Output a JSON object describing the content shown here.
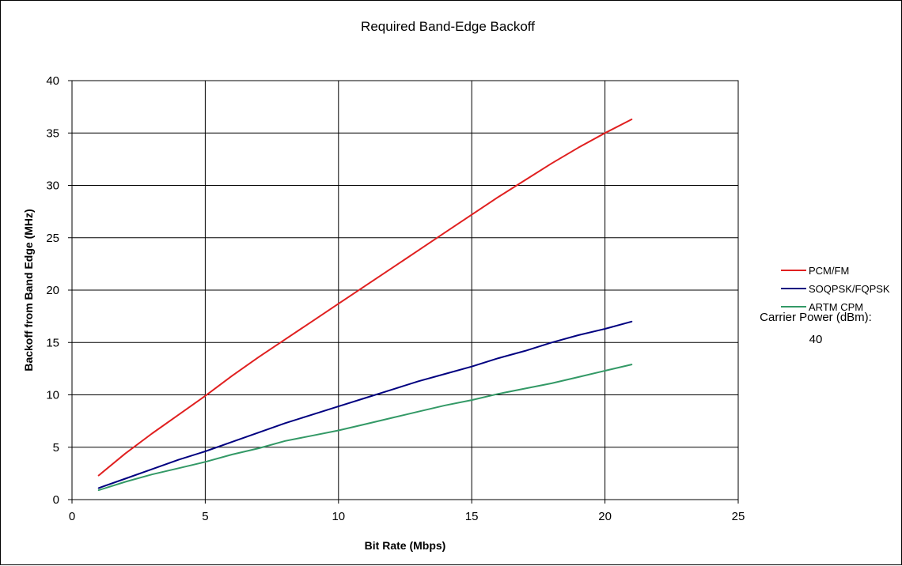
{
  "chart_data": {
    "type": "line",
    "title": "Required Band-Edge Backoff",
    "xlabel": "Bit Rate (Mbps)",
    "ylabel": "Backoff from Band Edge (MHz)",
    "xlim": [
      0,
      25
    ],
    "ylim": [
      0,
      40
    ],
    "xticks": [
      "0",
      "5",
      "10",
      "15",
      "20",
      "25"
    ],
    "yticks": [
      "0",
      "5",
      "10",
      "15",
      "20",
      "25",
      "30",
      "35",
      "40"
    ],
    "grid": true,
    "legend_position": "right",
    "series": [
      {
        "name": "PCM/FM",
        "color": "#e02020",
        "x": [
          1,
          2,
          3,
          4,
          5,
          6,
          7,
          8,
          9,
          10,
          11,
          12,
          13,
          14,
          15,
          16,
          17,
          18,
          19,
          20,
          21
        ],
        "values": [
          2.3,
          4.4,
          6.3,
          8.1,
          9.9,
          11.8,
          13.6,
          15.3,
          17.0,
          18.7,
          20.4,
          22.1,
          23.8,
          25.5,
          27.2,
          28.9,
          30.5,
          32.1,
          33.6,
          35.0,
          36.3
        ]
      },
      {
        "name": "SOQPSK/FQPSK",
        "color": "#000080",
        "x": [
          1,
          2,
          3,
          4,
          5,
          6,
          7,
          8,
          9,
          10,
          11,
          12,
          13,
          14,
          15,
          16,
          17,
          18,
          19,
          20,
          21
        ],
        "values": [
          1.1,
          2.0,
          2.9,
          3.8,
          4.6,
          5.5,
          6.4,
          7.3,
          8.1,
          8.9,
          9.7,
          10.5,
          11.3,
          12.0,
          12.7,
          13.5,
          14.2,
          15.0,
          15.7,
          16.3,
          17.0
        ]
      },
      {
        "name": "ARTM CPM",
        "color": "#339966",
        "x": [
          1,
          2,
          3,
          4,
          5,
          6,
          7,
          8,
          9,
          10,
          11,
          12,
          13,
          14,
          15,
          16,
          17,
          18,
          19,
          20,
          21
        ],
        "values": [
          0.9,
          1.7,
          2.4,
          3.0,
          3.6,
          4.3,
          4.9,
          5.6,
          6.1,
          6.6,
          7.2,
          7.8,
          8.4,
          9.0,
          9.5,
          10.1,
          10.6,
          11.1,
          11.7,
          12.3,
          12.9
        ]
      }
    ]
  },
  "annotation": {
    "label": "Carrier Power (dBm):",
    "value": "40"
  }
}
